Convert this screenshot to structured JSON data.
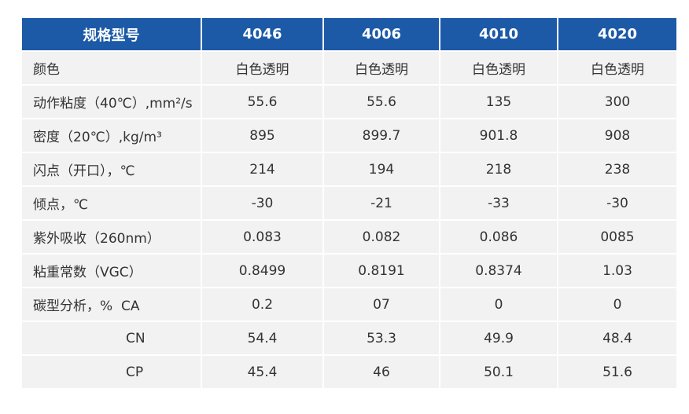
{
  "table": {
    "header": [
      "规格型号",
      "4046",
      "4006",
      "4010",
      "4020"
    ],
    "rows": [
      [
        "颜色",
        "白色透明",
        "白色透明",
        "白色透明",
        "白色透明"
      ],
      [
        "动作粘度（40℃）,mm²/s",
        "55.6",
        "55.6",
        "135",
        "300"
      ],
      [
        "密度（20℃）,kg/m³",
        "895",
        "899.7",
        "901.8",
        "908"
      ],
      [
        "闪点（开口），℃",
        "214",
        "194",
        "218",
        "238"
      ],
      [
        "倾点，℃",
        "-30",
        "-21",
        "-33",
        "-30"
      ],
      [
        "紫外吸收（260nm）",
        "0.083",
        "0.082",
        "0.086",
        "0085"
      ],
      [
        "粘重常数（VGC）",
        "0.8499",
        "0.8191",
        "0.8374",
        "1.03"
      ],
      [
        "碳型分析，%  CA",
        "0.2",
        "07",
        "0",
        "0"
      ],
      [
        "CN",
        "54.4",
        "53.3",
        "49.9",
        "48.4"
      ],
      [
        "CP",
        "45.4",
        "46",
        "50.1",
        "51.6"
      ]
    ]
  }
}
